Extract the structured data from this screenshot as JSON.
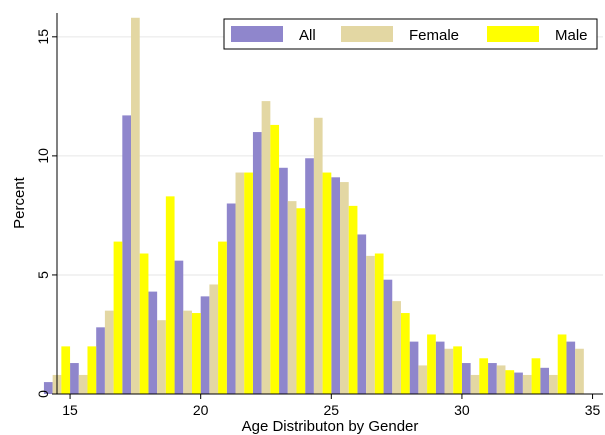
{
  "chart_data": {
    "type": "bar",
    "title": "",
    "xlabel": "Age Distributon by Gender",
    "ylabel": "Percent",
    "xlim": [
      14.5,
      35.4
    ],
    "ylim": [
      0,
      16
    ],
    "xticks": [
      15,
      20,
      25,
      30,
      35
    ],
    "yticks": [
      0,
      5,
      10,
      15
    ],
    "grid": "horizontal",
    "legend_position": "top-right",
    "x": [
      15,
      16,
      17,
      18,
      19,
      20,
      21,
      22,
      23,
      24,
      25,
      26,
      27,
      28,
      29,
      30,
      31,
      32,
      33,
      34,
      35
    ],
    "series": [
      {
        "name": "All",
        "color": "#8f86cc",
        "values": [
          0.5,
          1.3,
          2.8,
          11.7,
          4.3,
          5.6,
          4.1,
          8.0,
          11.0,
          9.5,
          9.9,
          9.1,
          6.7,
          4.8,
          2.2,
          2.2,
          1.3,
          1.3,
          0.9,
          1.1,
          2.2
        ]
      },
      {
        "name": "Female",
        "color": "#e3d7a3",
        "values": [
          0.8,
          0.8,
          3.5,
          15.8,
          3.1,
          3.5,
          4.6,
          9.3,
          12.3,
          8.1,
          11.6,
          8.9,
          5.8,
          3.9,
          1.2,
          1.9,
          0.8,
          1.2,
          0.8,
          0.8,
          1.9
        ]
      },
      {
        "name": "Male",
        "color": "#ffff00",
        "values": [
          2.0,
          2.0,
          6.4,
          5.9,
          8.3,
          3.4,
          6.4,
          9.3,
          11.3,
          7.8,
          9.3,
          7.9,
          5.9,
          3.4,
          2.5,
          2.0,
          1.5,
          1.0,
          1.5,
          2.5,
          0
        ]
      }
    ]
  }
}
